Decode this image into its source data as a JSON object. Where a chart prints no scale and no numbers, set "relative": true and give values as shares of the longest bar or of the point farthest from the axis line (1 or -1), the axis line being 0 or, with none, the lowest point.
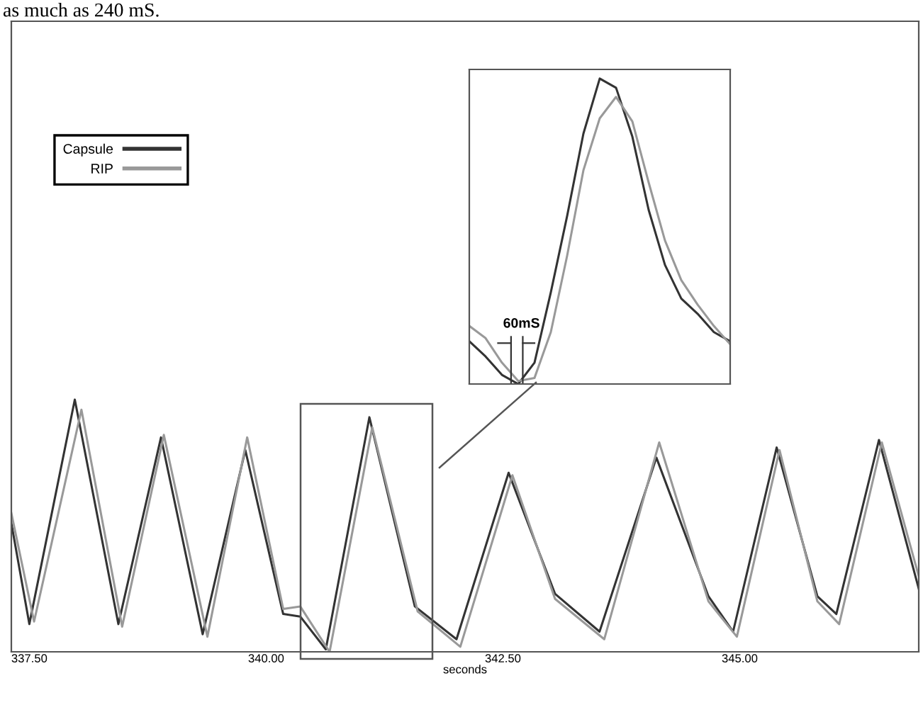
{
  "chart_data": [
    {
      "type": "line",
      "relative": true,
      "xlabel": "seconds",
      "xlim": [
        337.31,
        346.89
      ],
      "xticks": [
        {
          "value": 337.5,
          "label": "337.50"
        },
        {
          "value": 340,
          "label": "340.00"
        },
        {
          "value": 342.5,
          "label": "342.50"
        },
        {
          "value": 345,
          "label": "345.00"
        }
      ],
      "tick_labels": "x",
      "legend": "top left",
      "annotations": [
        "as much as 240 mS."
      ],
      "series": [
        {
          "name": "Capsule",
          "color": "#333333",
          "x": [
            337.31,
            337.5,
            337.98,
            338.44,
            338.89,
            339.33,
            339.78,
            340.18,
            340.36,
            340.63,
            341.09,
            341.57,
            342.01,
            342.56,
            343.05,
            343.52,
            344.12,
            344.67,
            344.93,
            345.39,
            345.82,
            346.02,
            346.47,
            346.89
          ],
          "values": [
            0.51,
            0.11,
            1.0,
            0.11,
            0.85,
            0.07,
            0.8,
            0.15,
            0.14,
            0.01,
            0.93,
            0.18,
            0.05,
            0.71,
            0.23,
            0.08,
            0.77,
            0.22,
            0.08,
            0.81,
            0.22,
            0.15,
            0.84,
            0.25
          ]
        },
        {
          "name": "RIP",
          "color": "#999999",
          "x": [
            337.31,
            337.55,
            338.05,
            338.48,
            338.92,
            339.38,
            339.8,
            340.18,
            340.36,
            340.67,
            341.12,
            341.6,
            342.05,
            342.6,
            343.05,
            343.57,
            344.15,
            344.67,
            344.97,
            345.42,
            345.82,
            346.05,
            346.5,
            346.89
          ],
          "values": [
            0.55,
            0.12,
            0.96,
            0.1,
            0.86,
            0.06,
            0.85,
            0.17,
            0.18,
            0.0,
            0.89,
            0.16,
            0.02,
            0.7,
            0.21,
            0.05,
            0.83,
            0.2,
            0.06,
            0.8,
            0.2,
            0.11,
            0.83,
            0.3
          ]
        }
      ]
    },
    {
      "type": "line",
      "relative": true,
      "tick_labels": false,
      "annotations": [
        "60mS"
      ],
      "categories": [
        null,
        null,
        null,
        null,
        null,
        null,
        null,
        null,
        null,
        null,
        null,
        null,
        null,
        null,
        null,
        null,
        null
      ],
      "series": [
        {
          "color": "#333333",
          "values": [
            0.14,
            0.09,
            0.03,
            0.0,
            0.07,
            0.3,
            0.55,
            0.82,
            1.0,
            0.97,
            0.81,
            0.57,
            0.39,
            0.28,
            0.23,
            0.17,
            0.14
          ]
        },
        {
          "color": "#999999",
          "values": [
            0.19,
            0.15,
            0.07,
            0.01,
            0.02,
            0.17,
            0.42,
            0.7,
            0.87,
            0.94,
            0.86,
            0.66,
            0.47,
            0.34,
            0.26,
            0.19,
            0.13
          ]
        }
      ]
    }
  ]
}
